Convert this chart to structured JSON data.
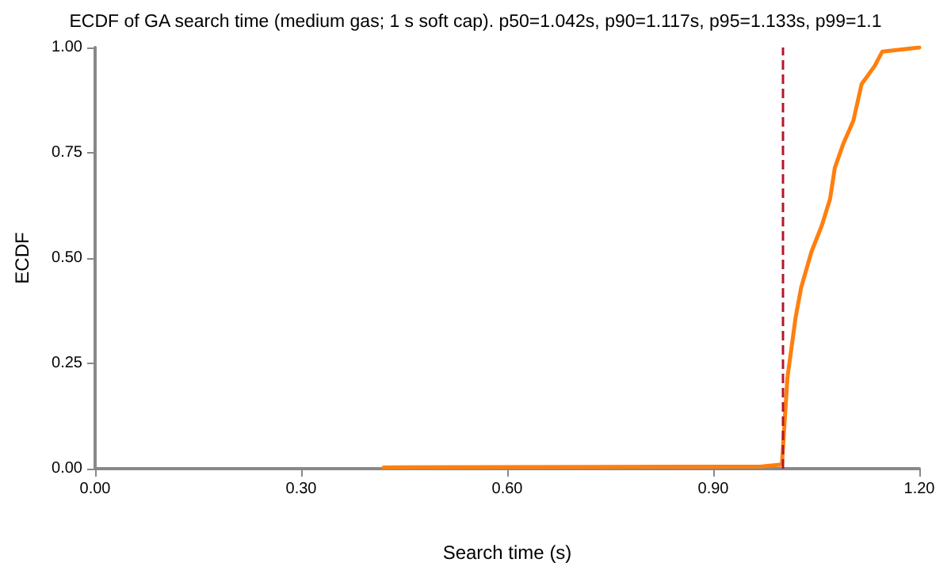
{
  "chart_data": {
    "type": "line",
    "title": "ECDF of GA search time (medium gas; 1 s soft cap). p50=1.042s, p90=1.117s, p95=1.133s, p99=1.1",
    "xlabel": "Search time (s)",
    "ylabel": "ECDF",
    "x": [
      0.42,
      0.97,
      1.0,
      1.008,
      1.02,
      1.028,
      1.043,
      1.058,
      1.07,
      1.077,
      1.089,
      1.104,
      1.116,
      1.135,
      1.146,
      1.2
    ],
    "series": [
      {
        "color": "#ff7f0e",
        "values": [
          0.003,
          0.005,
          0.01,
          0.216,
          0.36,
          0.43,
          0.515,
          0.577,
          0.64,
          0.714,
          0.77,
          0.826,
          0.913,
          0.956,
          0.99,
          1.0
        ]
      }
    ],
    "xlim": [
      0,
      1.2
    ],
    "xticks": [
      {
        "value": 0,
        "label": "0.00"
      },
      {
        "value": 0.3,
        "label": "0.30"
      },
      {
        "value": 0.6,
        "label": "0.60"
      },
      {
        "value": 0.9,
        "label": "0.90"
      },
      {
        "value": 1.2,
        "label": "1.20"
      }
    ],
    "ylim": [
      0,
      1
    ],
    "yticks": [
      {
        "value": 0,
        "label": "0.00"
      },
      {
        "value": 0.25,
        "label": "0.25"
      },
      {
        "value": 0.5,
        "label": "0.50"
      },
      {
        "value": 0.75,
        "label": "0.75"
      },
      {
        "value": 1,
        "label": "1.00"
      }
    ],
    "ref_lines": [
      {
        "axis": "x",
        "value": 1.0,
        "color": "#b2182b",
        "line_style": "dashed"
      }
    ],
    "grid": false,
    "marker": "none",
    "line_style": "solid"
  }
}
